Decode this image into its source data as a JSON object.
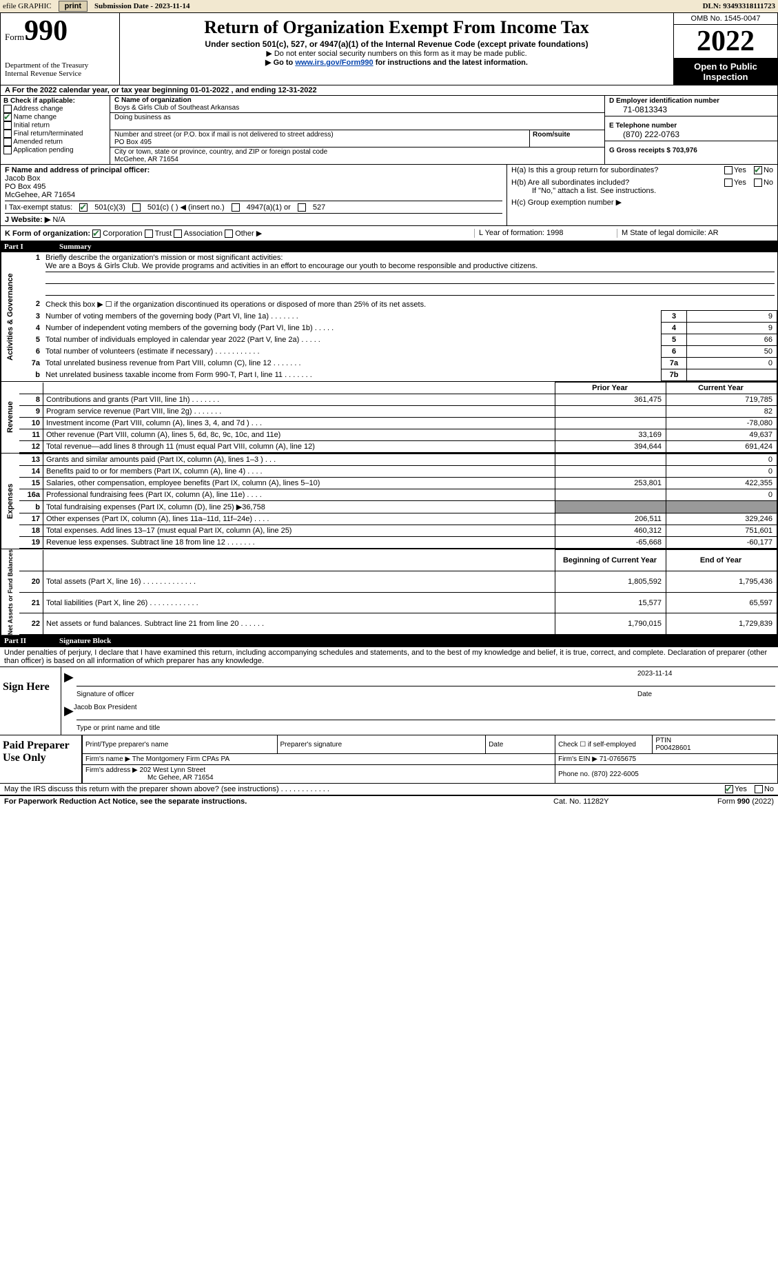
{
  "topbar": {
    "efile": "efile GRAPHIC",
    "print": "print",
    "subdate_lbl": "Submission Date - 2023-11-14",
    "dln": "DLN: 93493318111723"
  },
  "header": {
    "form_small": "Form",
    "form_big": "990",
    "dept": "Department of the Treasury",
    "irs": "Internal Revenue Service",
    "title": "Return of Organization Exempt From Income Tax",
    "sub1": "Under section 501(c), 527, or 4947(a)(1) of the Internal Revenue Code (except private foundations)",
    "sub2": "▶ Do not enter social security numbers on this form as it may be made public.",
    "sub3a": "▶ Go to ",
    "sub3link": "www.irs.gov/Form990",
    "sub3b": " for instructions and the latest information.",
    "omb": "OMB No. 1545-0047",
    "year": "2022",
    "otp": "Open to Public Inspection"
  },
  "a": "A For the 2022 calendar year, or tax year beginning 01-01-2022    , and ending 12-31-2022",
  "b": {
    "hdr": "B Check if applicable:",
    "items": [
      "Address change",
      "Name change",
      "Initial return",
      "Final return/terminated",
      "Amended return",
      "Application pending"
    ],
    "checked": [
      false,
      true,
      false,
      false,
      false,
      false
    ]
  },
  "c": {
    "name_lbl": "C Name of organization",
    "name": "Boys & Girls Club of Southeast Arkansas",
    "dba_lbl": "Doing business as",
    "addr_lbl": "Number and street (or P.O. box if mail is not delivered to street address)",
    "addr": "PO Box 495",
    "room_lbl": "Room/suite",
    "city_lbl": "City or town, state or province, country, and ZIP or foreign postal code",
    "city": "McGehee, AR  71654"
  },
  "d": {
    "lbl": "D Employer identification number",
    "val": "71-0813343"
  },
  "e": {
    "lbl": "E Telephone number",
    "val": "(870) 222-0763"
  },
  "g": {
    "lbl": "G Gross receipts $ 703,976"
  },
  "f": {
    "lbl": "F  Name and address of principal officer:",
    "name": "Jacob Box",
    "addr1": "PO Box 495",
    "addr2": "McGehee, AR  71654"
  },
  "h": {
    "a": "H(a)  Is this a group return for subordinates?",
    "b": "H(b)  Are all subordinates included?",
    "b2": "If \"No,\" attach a list. See instructions.",
    "c": "H(c)  Group exemption number ▶"
  },
  "i": {
    "lbl": "I    Tax-exempt status:",
    "o1": "501(c)(3)",
    "o2": "501(c) (   ) ◀ (insert no.)",
    "o3": "4947(a)(1) or",
    "o4": "527"
  },
  "j": {
    "lbl": "J   Website: ▶",
    "val": "   N/A"
  },
  "k": {
    "lbl": "K Form of organization:",
    "o": [
      "Corporation",
      "Trust",
      "Association",
      "Other ▶"
    ],
    "l": "L Year of formation: 1998",
    "m": "M State of legal domicile: AR"
  },
  "part1": {
    "num": "Part I",
    "title": "Summary"
  },
  "gov": {
    "tab": "Activities & Governance",
    "l1a": "Briefly describe the organization's mission or most significant activities:",
    "l1b": "We are a Boys & Girls Club. We provide programs and activities in an effort to encourage our youth to become responsible and productive citizens.",
    "l2": "Check this box ▶ ☐  if the organization discontinued its operations or disposed of more than 25% of its net assets.",
    "rows": [
      {
        "n": "3",
        "d": "Number of voting members of the governing body (Part VI, line 1a)   .    .    .    .    .    .    .",
        "b": "3",
        "v": "9"
      },
      {
        "n": "4",
        "d": "Number of independent voting members of the governing body (Part VI, line 1b)   .    .    .    .    .",
        "b": "4",
        "v": "9"
      },
      {
        "n": "5",
        "d": "Total number of individuals employed in calendar year 2022 (Part V, line 2a)   .    .    .    .    .",
        "b": "5",
        "v": "66"
      },
      {
        "n": "6",
        "d": "Total number of volunteers (estimate if necessary)    .    .    .    .    .    .    .    .    .    .    .",
        "b": "6",
        "v": "50"
      },
      {
        "n": "7a",
        "d": "Total unrelated business revenue from Part VIII, column (C), line 12   .    .    .    .    .    .    .",
        "b": "7a",
        "v": "0"
      },
      {
        "n": "b",
        "d": "Net unrelated business taxable income from Form 990-T, Part I, line 11   .    .    .    .    .    .    .",
        "b": "7b",
        "v": ""
      }
    ]
  },
  "rev": {
    "tab": "Revenue",
    "py": "Prior Year",
    "cy": "Current Year",
    "rows": [
      {
        "n": "8",
        "d": "Contributions and grants (Part VIII, line 1h)    .    .    .    .    .    .    .",
        "py": "361,475",
        "cy": "719,785"
      },
      {
        "n": "9",
        "d": "Program service revenue (Part VIII, line 2g)    .    .    .    .    .    .    .",
        "py": "",
        "cy": "82"
      },
      {
        "n": "10",
        "d": "Investment income (Part VIII, column (A), lines 3, 4, and 7d )   .    .    .",
        "py": "",
        "cy": "-78,080"
      },
      {
        "n": "11",
        "d": "Other revenue (Part VIII, column (A), lines 5, 6d, 8c, 9c, 10c, and 11e)",
        "py": "33,169",
        "cy": "49,637"
      },
      {
        "n": "12",
        "d": "Total revenue—add lines 8 through 11 (must equal Part VIII, column (A), line 12)",
        "py": "394,644",
        "cy": "691,424"
      }
    ]
  },
  "exp": {
    "tab": "Expenses",
    "rows": [
      {
        "n": "13",
        "d": "Grants and similar amounts paid (Part IX, column (A), lines 1–3 )   .    .    .",
        "py": "",
        "cy": "0"
      },
      {
        "n": "14",
        "d": "Benefits paid to or for members (Part IX, column (A), line 4)   .    .    .    .",
        "py": "",
        "cy": "0"
      },
      {
        "n": "15",
        "d": "Salaries, other compensation, employee benefits (Part IX, column (A), lines 5–10)",
        "py": "253,801",
        "cy": "422,355"
      },
      {
        "n": "16a",
        "d": "Professional fundraising fees (Part IX, column (A), line 11e)   .    .    .    .",
        "py": "",
        "cy": "0"
      },
      {
        "n": "b",
        "d": "Total fundraising expenses (Part IX, column (D), line 25) ▶36,758",
        "py": "shade",
        "cy": "shade"
      },
      {
        "n": "17",
        "d": "Other expenses (Part IX, column (A), lines 11a–11d, 11f–24e)   .    .    .    .",
        "py": "206,511",
        "cy": "329,246"
      },
      {
        "n": "18",
        "d": "Total expenses. Add lines 13–17 (must equal Part IX, column (A), line 25)",
        "py": "460,312",
        "cy": "751,601"
      },
      {
        "n": "19",
        "d": "Revenue less expenses. Subtract line 18 from line 12  .    .    .    .    .    .    .",
        "py": "-65,668",
        "cy": "-60,177"
      }
    ]
  },
  "net": {
    "tab": "Net Assets or Fund Balances",
    "by": "Beginning of Current Year",
    "ey": "End of Year",
    "rows": [
      {
        "n": "20",
        "d": "Total assets (Part X, line 16)  .    .    .    .    .    .    .    .    .    .    .    .    .",
        "py": "1,805,592",
        "cy": "1,795,436"
      },
      {
        "n": "21",
        "d": "Total liabilities (Part X, line 26)  .    .    .    .    .    .    .    .    .    .    .    .",
        "py": "15,577",
        "cy": "65,597"
      },
      {
        "n": "22",
        "d": "Net assets or fund balances. Subtract line 21 from line 20  .    .    .    .    .    .",
        "py": "1,790,015",
        "cy": "1,729,839"
      }
    ]
  },
  "part2": {
    "num": "Part II",
    "title": "Signature Block"
  },
  "sig": {
    "decl": "Under penalties of perjury, I declare that I have examined this return, including accompanying schedules and statements, and to the best of my knowledge and belief, it is true, correct, and complete. Declaration of preparer (other than officer) is based on all information of which preparer has any knowledge.",
    "here": "Sign Here",
    "sigoff": "Signature of officer",
    "date": "Date",
    "dateval": "2023-11-14",
    "name": "Jacob Box  President",
    "typelbl": "Type or print name and title"
  },
  "prep": {
    "lbl": "Paid Preparer Use Only",
    "h1": "Print/Type preparer's name",
    "h2": "Preparer's signature",
    "h3": "Date",
    "h4a": "Check ☐ if self-employed",
    "h4b": "PTIN",
    "ptin": "P00428601",
    "firmname_lbl": "Firm's name     ▶",
    "firmname": "The Montgomery Firm CPAs PA",
    "firmein_lbl": "Firm's EIN ▶",
    "firmein": "71-0765675",
    "firmaddr_lbl": "Firm's address ▶",
    "firmaddr1": "202 West Lynn Street",
    "firmaddr2": "Mc Gehee, AR  71654",
    "phone_lbl": "Phone no.",
    "phone": "(870) 222-6005"
  },
  "last": "May the IRS discuss this return with the preparer shown above? (see instructions)   .    .    .    .    .    .    .    .    .    .    .    .",
  "footer": {
    "left": "For Paperwork Reduction Act Notice, see the separate instructions.",
    "mid": "Cat. No. 11282Y",
    "right": "Form 990 (2022)"
  }
}
